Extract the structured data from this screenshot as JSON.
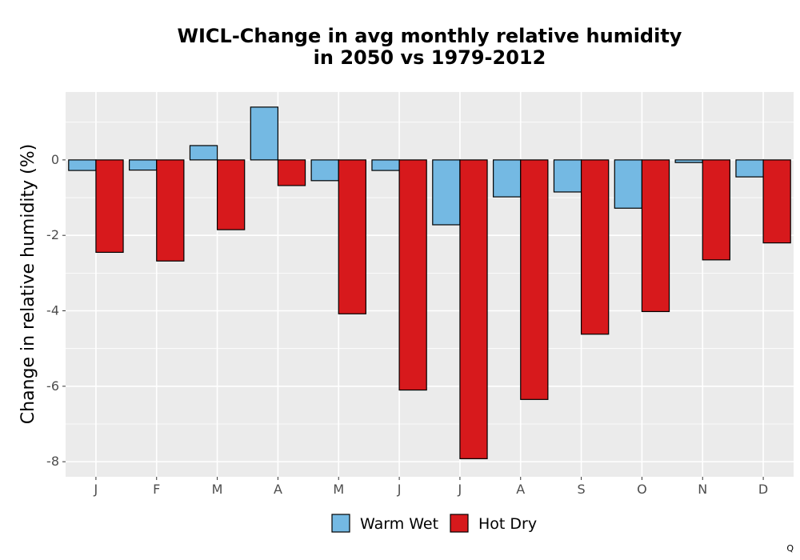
{
  "chart_data": {
    "type": "bar",
    "title": "WICL-Change in avg monthly relative humidity\nin 2050 vs 1979-2012",
    "xlabel": "",
    "ylabel": "Change in relative humidity (%)",
    "categories": [
      "J",
      "F",
      "M",
      "A",
      "M",
      "J",
      "J",
      "A",
      "S",
      "O",
      "N",
      "D"
    ],
    "series": [
      {
        "name": "Warm Wet",
        "color": "#74b9e3",
        "values": [
          -0.28,
          -0.27,
          0.38,
          1.4,
          -0.55,
          -0.28,
          -1.72,
          -0.98,
          -0.85,
          -1.28,
          -0.07,
          -0.45
        ]
      },
      {
        "name": "Hot Dry",
        "color": "#d7191c",
        "values": [
          -2.45,
          -2.68,
          -1.85,
          -0.68,
          -4.08,
          -6.1,
          -7.92,
          -6.35,
          -4.62,
          -4.02,
          -2.65,
          -2.2
        ]
      }
    ],
    "ylim": [
      -8.4,
      1.8
    ],
    "yticks": [
      0,
      -2,
      -4,
      -6,
      -8
    ],
    "ytick_labels": [
      "0",
      "-2",
      "-4",
      "-6",
      "-8"
    ],
    "grid": true,
    "legend_position": "bottom",
    "panel_color": "#ebebeb",
    "grid_color": "#ffffff"
  },
  "corner_mark": "Q"
}
